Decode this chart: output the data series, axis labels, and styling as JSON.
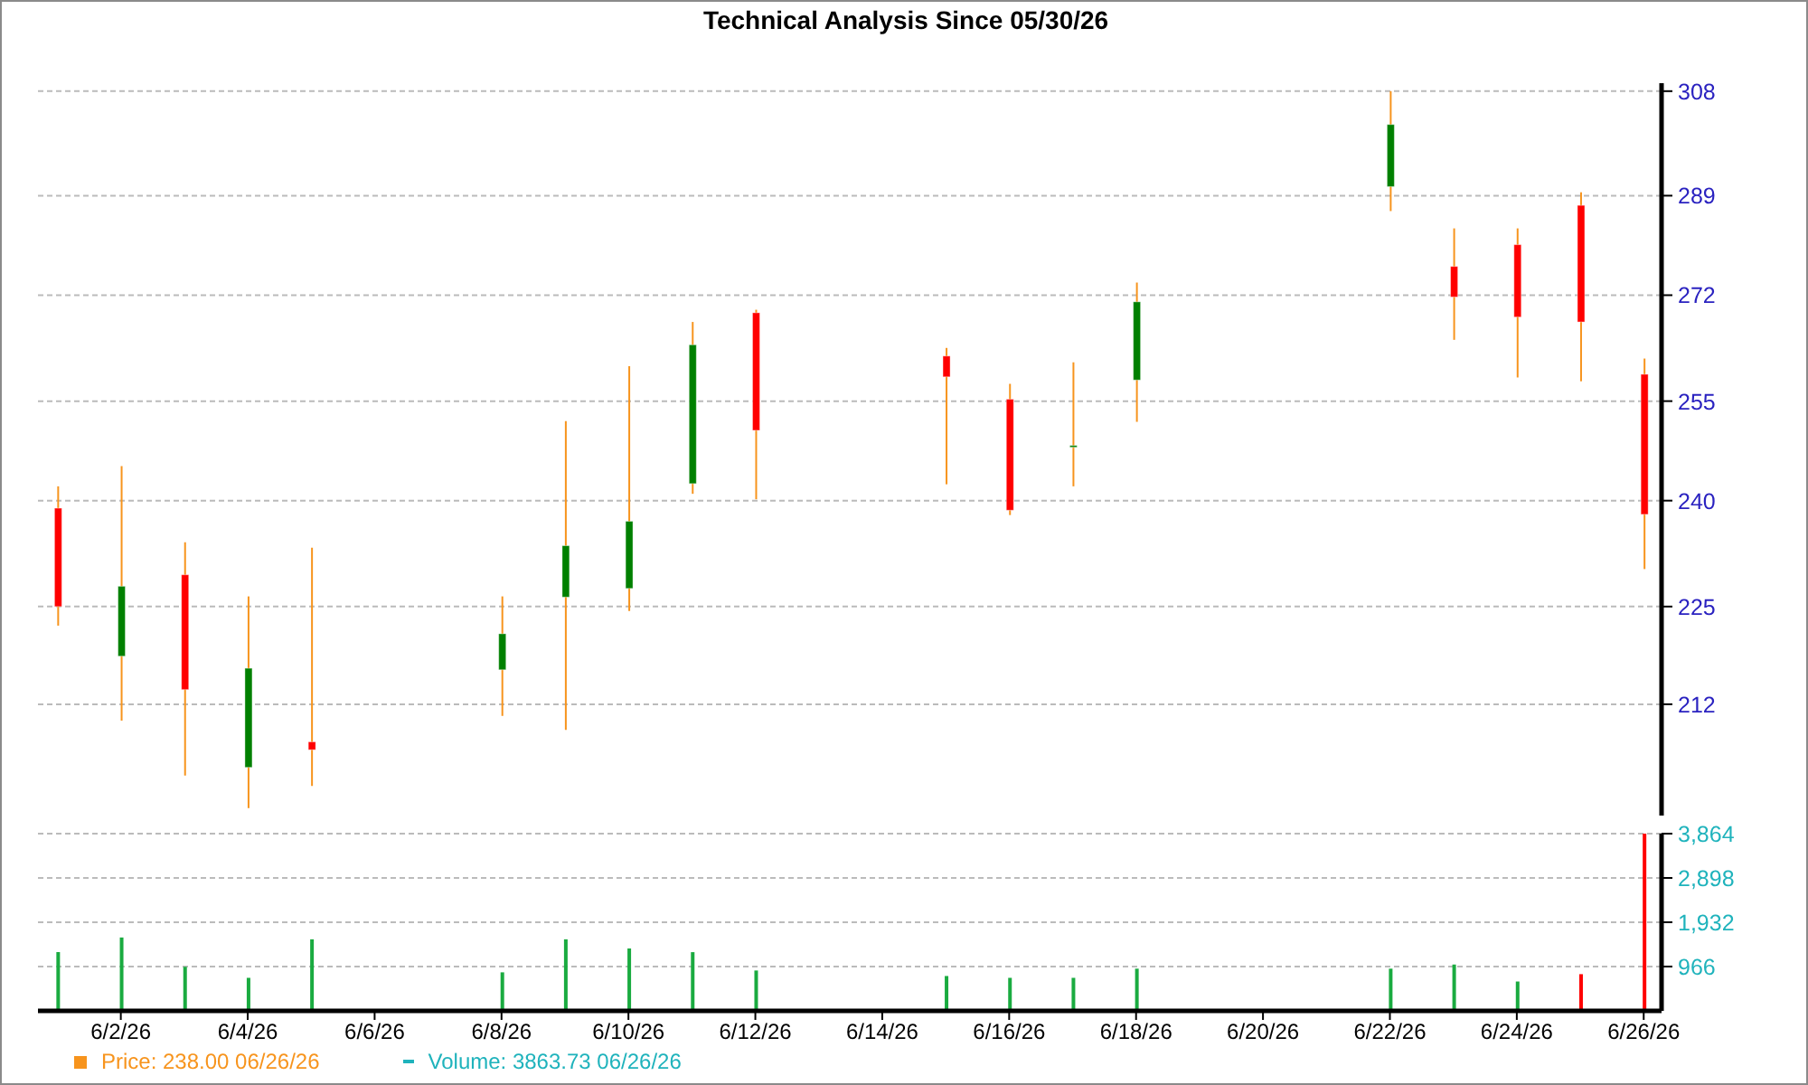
{
  "chart_data": [
    {
      "type": "candlestick",
      "title": "Technical Analysis Since 05/30/26",
      "x": [
        "--06-01",
        "--06-02",
        "--06-03",
        "--06-04",
        "--06-05",
        "--06-08",
        "--06-09",
        "--06-10",
        "--06-11",
        "--06-12",
        "--06-15",
        "--06-16",
        "--06-17",
        "--06-18",
        "--06-22",
        "--06-23",
        "--06-24",
        "--06-25",
        "--06-26"
      ],
      "series": [
        {
          "name": "Price: 238.00 06/26/26",
          "color": "#f7941d",
          "colors": [
            "#ff0000",
            "#008000",
            "#ff0000",
            "#008000",
            "#ff0000",
            "#008000",
            "#008000",
            "#008000",
            "#008000",
            "#ff0000",
            "#ff0000",
            "#ff0000",
            "#008000",
            "#008000",
            "#008000",
            "#ff0000",
            "#ff0000",
            "#ff0000",
            "#ff0000"
          ],
          "ohlc": [
            [
              238.9,
              242.1,
              222.4,
              225.0
            ],
            [
              218.3,
              245.1,
              209.9,
              227.8
            ],
            [
              229.4,
              234.0,
              203.0,
              213.9
            ],
            [
              204.0,
              226.4,
              199.0,
              216.7
            ],
            [
              207.2,
              233.2,
              201.7,
              206.2
            ],
            [
              216.5,
              226.4,
              210.5,
              221.3
            ],
            [
              226.3,
              251.9,
              208.7,
              233.5
            ],
            [
              227.5,
              260.5,
              224.4,
              237.0
            ],
            [
              242.5,
              267.6,
              241.0,
              263.9
            ],
            [
              269.1,
              269.6,
              240.2,
              250.5
            ],
            [
              262.1,
              263.4,
              242.4,
              258.8
            ],
            [
              255.3,
              257.7,
              237.9,
              238.6
            ],
            [
              248.2,
              261.1,
              242.1,
              248.2
            ],
            [
              258.3,
              274.1,
              251.8,
              270.9
            ],
            [
              290.6,
              308.0,
              286.3,
              301.8
            ],
            [
              276.8,
              283.3,
              264.7,
              271.7
            ],
            [
              280.5,
              283.3,
              258.7,
              268.4
            ],
            [
              287.3,
              289.6,
              258.1,
              267.6
            ],
            [
              259.2,
              261.7,
              230.2,
              238.0
            ]
          ]
        }
      ],
      "xlim": [
        "--05-31T16:40",
        "--06-26T06:45"
      ],
      "ylim": [
        198.1,
        309.5
      ],
      "yticks": [
        212,
        225,
        240,
        255,
        272,
        289,
        308
      ],
      "log": true,
      "grid": "y",
      "legend": "bottom left",
      "tick_labels": "y"
    },
    {
      "type": "bar",
      "x": [
        "--06-01",
        "--06-02",
        "--06-03",
        "--06-04",
        "--06-05",
        "--06-08",
        "--06-09",
        "--06-10",
        "--06-11",
        "--06-12",
        "--06-15",
        "--06-16",
        "--06-17",
        "--06-18",
        "--06-22",
        "--06-23",
        "--06-24",
        "--06-25",
        "--06-26"
      ],
      "series": [
        {
          "name": "Volume: 3863.73 06/26/26",
          "color": "#1fb3bc",
          "colors": [
            "#1aab40",
            "#1aab40",
            "#1aab40",
            "#1aab40",
            "#1aab40",
            "#1aab40",
            "#1aab40",
            "#1aab40",
            "#1aab40",
            "#1aab40",
            "#1aab40",
            "#1aab40",
            "#1aab40",
            "#1aab40",
            "#1aab40",
            "#1aab40",
            "#1aab40",
            "#ff0000",
            "#ff0000"
          ],
          "values": [
            1280,
            1600,
            960,
            720,
            1560,
            840,
            1560,
            1360,
            1280,
            880,
            760,
            720,
            720,
            920,
            920,
            1010,
            640,
            800,
            3863.73
          ]
        }
      ],
      "xlim": [
        "--05-31T16:40",
        "--06-26T06:45"
      ],
      "xticks": [
        {
          "value": "--06-02",
          "label": "6/2/26"
        },
        {
          "value": "--06-04",
          "label": "6/4/26"
        },
        {
          "value": "--06-06",
          "label": "6/6/26"
        },
        {
          "value": "--06-08",
          "label": "6/8/26"
        },
        {
          "value": "--06-10",
          "label": "6/10/26"
        },
        {
          "value": "--06-12",
          "label": "6/12/26"
        },
        {
          "value": "--06-14",
          "label": "6/14/26"
        },
        {
          "value": "--06-16",
          "label": "6/16/26"
        },
        {
          "value": "--06-18",
          "label": "6/18/26"
        },
        {
          "value": "--06-20",
          "label": "6/20/26"
        },
        {
          "value": "--06-22",
          "label": "6/22/26"
        },
        {
          "value": "--06-24",
          "label": "6/24/26"
        },
        {
          "value": "--06-26",
          "label": "6/26/26"
        }
      ],
      "ylim": [
        0,
        3864
      ],
      "yticks": [
        966,
        {
          "value": 1932,
          "label": "1,932"
        },
        {
          "value": 2898,
          "label": "2,898"
        },
        {
          "value": 3864,
          "label": "3,864"
        }
      ],
      "grid": "y",
      "legend": "bottom left"
    }
  ]
}
